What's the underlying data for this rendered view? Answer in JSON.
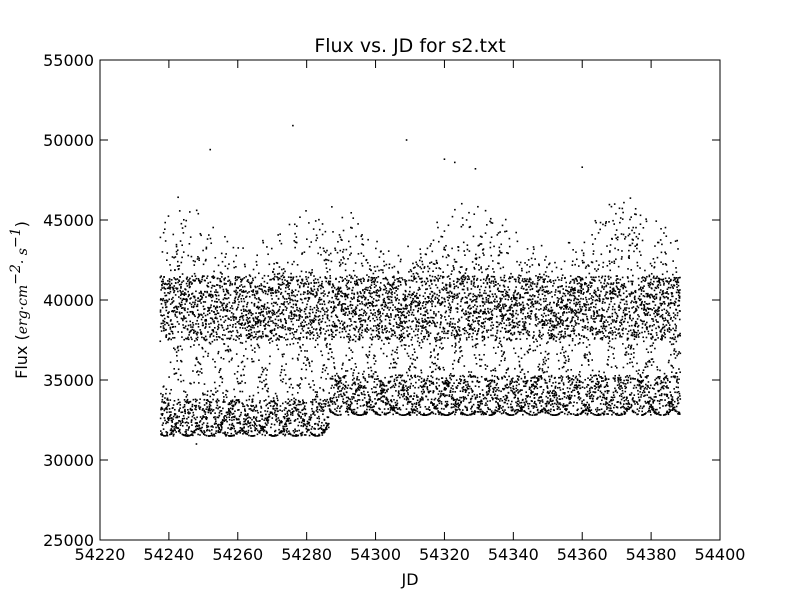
{
  "chart_data": {
    "type": "scatter",
    "title": "Flux vs. JD for s2.txt",
    "xlabel": "JD",
    "ylabel_prefix": "Flux (",
    "ylabel_math": "erg·cm",
    "ylabel_exp1": "−2",
    "ylabel_mid": "· s",
    "ylabel_exp2": "−1",
    "ylabel_suffix": ")",
    "xlim": [
      54220,
      54400
    ],
    "ylim": [
      25000,
      55000
    ],
    "xticks": [
      54220,
      54240,
      54260,
      54280,
      54300,
      54320,
      54340,
      54360,
      54380,
      54400
    ],
    "yticks": [
      25000,
      30000,
      35000,
      40000,
      45000,
      50000,
      55000
    ],
    "marker_color": "#000000",
    "series": [
      {
        "name": "s2.txt",
        "x_start": 54237.5,
        "x_end": 54388.5,
        "point_count": 9000,
        "baseline_segments": [
          {
            "x_from": 54237.5,
            "x_to": 54286.5,
            "floor": 31500,
            "lower_band": 33000
          },
          {
            "x_from": 54286.5,
            "x_to": 54388.5,
            "floor": 32800,
            "lower_band": 34500
          }
        ],
        "dense_band_center": 40000,
        "typical_ceiling": 46500,
        "outliers": [
          {
            "x": 54252,
            "y": 49400
          },
          {
            "x": 54276,
            "y": 50900
          },
          {
            "x": 54309,
            "y": 50000
          },
          {
            "x": 54320,
            "y": 48800
          },
          {
            "x": 54323,
            "y": 48600
          },
          {
            "x": 54329,
            "y": 48200
          },
          {
            "x": 54360,
            "y": 48300
          },
          {
            "x": 54248,
            "y": 31000
          }
        ]
      }
    ]
  }
}
